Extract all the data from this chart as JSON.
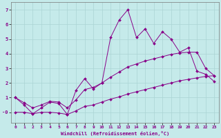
{
  "xlabel": "Windchill (Refroidissement éolien,°C)",
  "bg_color": "#c5eaea",
  "line_color": "#880088",
  "grid_color": "#aad4d4",
  "xlim": [
    -0.5,
    23.5
  ],
  "ylim": [
    -0.7,
    7.5
  ],
  "xticks": [
    0,
    1,
    2,
    3,
    4,
    5,
    6,
    7,
    8,
    9,
    10,
    11,
    12,
    13,
    14,
    15,
    16,
    17,
    18,
    19,
    20,
    21,
    22,
    23
  ],
  "yticks": [
    0,
    1,
    2,
    3,
    4,
    5,
    6,
    7
  ],
  "ytick_labels": [
    "-0",
    "1",
    "2",
    "3",
    "4",
    "5",
    "6",
    "7"
  ],
  "series1_x": [
    0,
    1,
    2,
    3,
    4,
    5,
    6,
    7,
    8,
    9,
    10,
    11,
    12,
    13,
    14,
    15,
    16,
    17,
    18,
    19,
    20,
    21,
    22,
    23
  ],
  "series1_y": [
    1.0,
    0.5,
    -0.1,
    0.3,
    0.7,
    0.6,
    -0.15,
    1.5,
    2.3,
    1.6,
    2.0,
    5.1,
    6.3,
    7.0,
    5.1,
    5.7,
    4.7,
    5.5,
    5.0,
    4.1,
    4.4,
    2.8,
    2.6,
    2.1
  ],
  "series2_x": [
    0,
    1,
    2,
    3,
    4,
    5,
    6,
    7,
    8,
    9,
    10,
    11,
    12,
    13,
    14,
    15,
    16,
    17,
    18,
    19,
    20,
    21,
    22,
    23
  ],
  "series2_y": [
    1.0,
    0.65,
    0.3,
    0.5,
    0.75,
    0.7,
    0.3,
    0.85,
    1.55,
    1.7,
    2.0,
    2.4,
    2.75,
    3.1,
    3.3,
    3.5,
    3.65,
    3.8,
    3.95,
    4.05,
    4.1,
    4.1,
    3.0,
    2.5
  ],
  "series3_x": [
    0,
    1,
    2,
    3,
    4,
    5,
    6,
    7,
    8,
    9,
    10,
    11,
    12,
    13,
    14,
    15,
    16,
    17,
    18,
    19,
    20,
    21,
    22,
    23
  ],
  "series3_y": [
    0.0,
    0.0,
    -0.1,
    0.0,
    0.0,
    -0.05,
    -0.15,
    0.1,
    0.4,
    0.5,
    0.7,
    0.9,
    1.05,
    1.25,
    1.4,
    1.55,
    1.7,
    1.85,
    2.0,
    2.15,
    2.25,
    2.35,
    2.45,
    2.5
  ]
}
